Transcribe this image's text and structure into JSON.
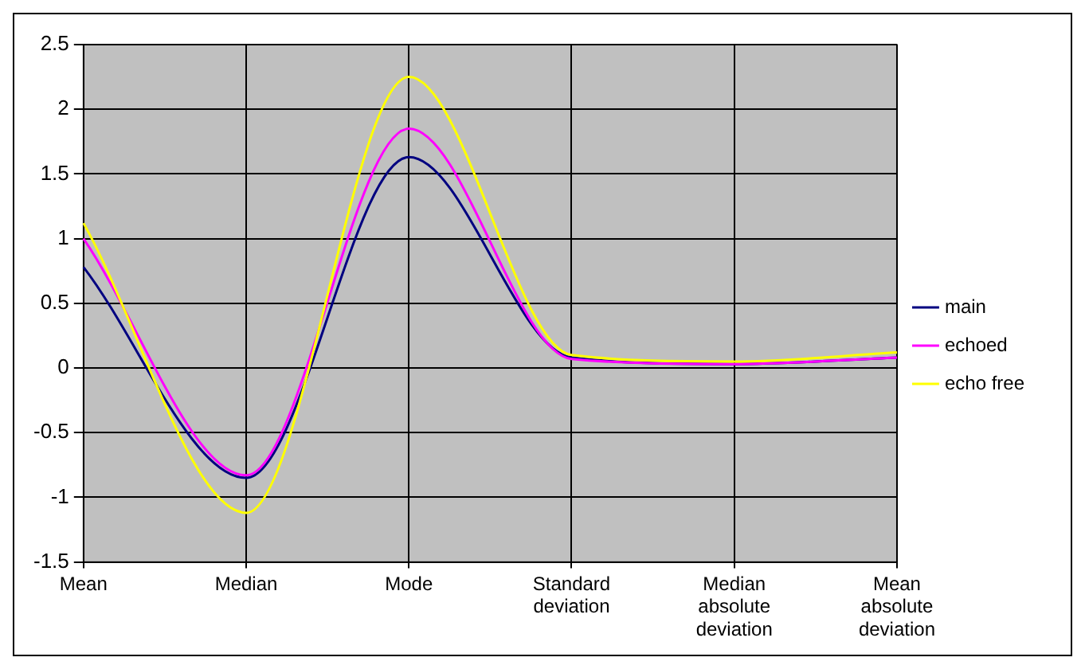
{
  "chart_data": {
    "type": "line",
    "categories": [
      "Mean",
      "Median",
      "Mode",
      "Standard deviation",
      "Median absolute deviation",
      "Mean absolute deviation"
    ],
    "series": [
      {
        "name": "main",
        "color": "#000080",
        "values": [
          0.78,
          -0.85,
          1.63,
          0.08,
          0.03,
          0.08
        ]
      },
      {
        "name": "echoed",
        "color": "#ff00ff",
        "values": [
          1.0,
          -0.83,
          1.85,
          0.07,
          0.03,
          0.08
        ]
      },
      {
        "name": "echo free",
        "color": "#ffff00",
        "values": [
          1.12,
          -1.12,
          2.25,
          0.1,
          0.05,
          0.12
        ]
      }
    ],
    "ylim": [
      -1.5,
      2.5
    ],
    "yticks": [
      -1.5,
      -1,
      -0.5,
      0,
      0.5,
      1,
      1.5,
      2,
      2.5
    ],
    "grid": true,
    "legend": "right",
    "marker": "none",
    "line_style": "solid"
  }
}
